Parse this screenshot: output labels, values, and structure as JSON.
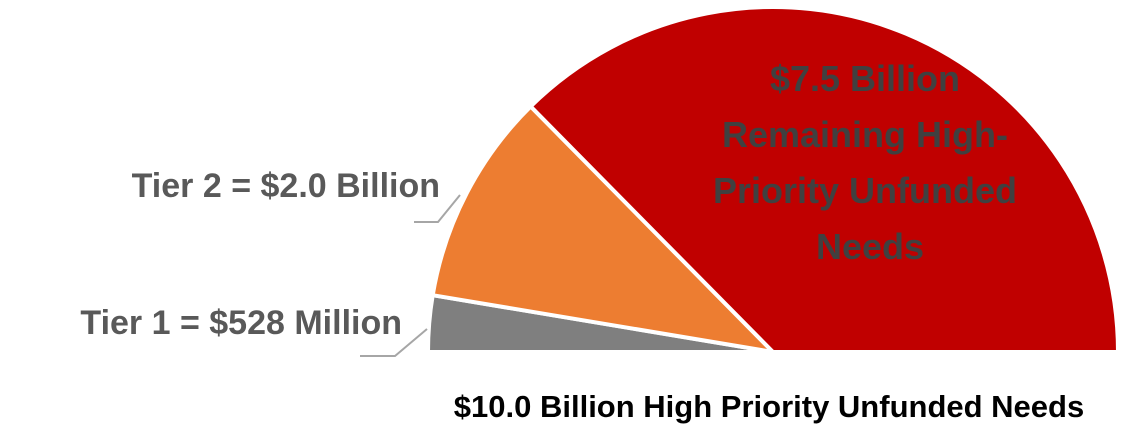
{
  "chart_data": {
    "type": "pie",
    "title": "",
    "caption": "$10.0 Billion High Priority Unfunded Needs",
    "total": 10.0,
    "unit": "Billion",
    "slices": [
      {
        "name": "Tier 1",
        "value": 0.528,
        "label": "Tier 1 = $528 Million",
        "label_position": "outside-left",
        "color": "#7f7f7f"
      },
      {
        "name": "Tier 2",
        "value": 2.0,
        "label": "Tier 2 = $2.0 Billion",
        "label_position": "outside-left",
        "color": "#ed7d31"
      },
      {
        "name": "Remaining",
        "value": 7.5,
        "label_lines": [
          "$7.5 Billion",
          "Remaining High-",
          "Priority Unfunded",
          "Needs"
        ],
        "label_position": "inside",
        "color": "#c00000"
      }
    ],
    "legend": "none",
    "grid": false
  }
}
